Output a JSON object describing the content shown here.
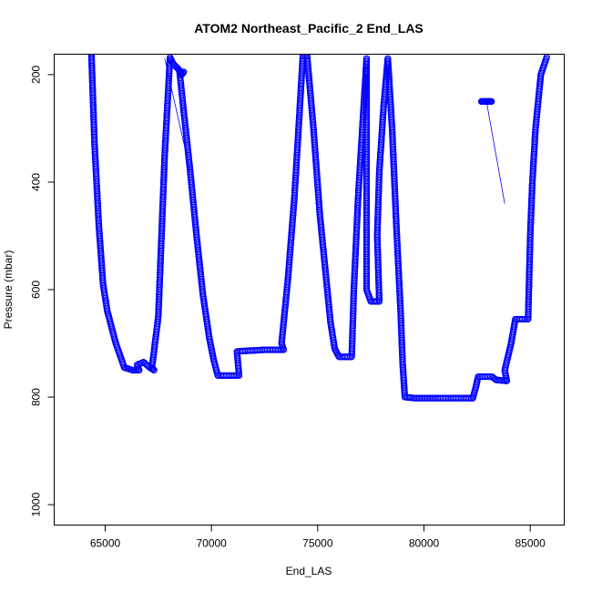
{
  "chart_data": {
    "type": "scatter",
    "title": "ATOM2 Northeast_Pacific_2 End_LAS",
    "xlabel": "End_LAS",
    "ylabel": "Pressure (mbar)",
    "xlim": [
      62600,
      86600
    ],
    "ylim": [
      1038,
      162
    ],
    "y_reversed": true,
    "x_ticks": [
      65000,
      70000,
      75000,
      80000,
      85000
    ],
    "y_ticks": [
      200,
      400,
      600,
      800,
      1000
    ],
    "x_tick_labels": [
      "65000",
      "70000",
      "75000",
      "80000",
      "85000"
    ],
    "y_tick_labels": [
      "200",
      "400",
      "600",
      "800",
      "1000"
    ],
    "grid": false,
    "marker": "open-circle",
    "series": [
      {
        "color": "#0000ff",
        "trace": [
          [
            64350,
            160
          ],
          [
            64500,
            330
          ],
          [
            64700,
            480
          ],
          [
            64900,
            590
          ],
          [
            65100,
            640
          ],
          [
            65500,
            700
          ],
          [
            65900,
            745
          ],
          [
            66300,
            750
          ],
          [
            66600,
            750
          ],
          [
            66500,
            740
          ],
          [
            66800,
            735
          ],
          [
            67100,
            745
          ],
          [
            67300,
            750
          ],
          [
            67200,
            745
          ],
          [
            67500,
            650
          ],
          [
            67800,
            350
          ],
          [
            68050,
            168
          ],
          [
            68200,
            180
          ],
          [
            68450,
            190
          ],
          [
            68600,
            200
          ],
          [
            68700,
            195
          ],
          [
            68500,
            195
          ],
          [
            68700,
            270
          ],
          [
            69000,
            380
          ],
          [
            69300,
            500
          ],
          [
            69600,
            610
          ],
          [
            69900,
            690
          ],
          [
            70100,
            730
          ],
          [
            70300,
            760
          ],
          [
            70700,
            760
          ],
          [
            71300,
            760
          ],
          [
            71200,
            715
          ],
          [
            72500,
            712
          ],
          [
            73400,
            712
          ],
          [
            73300,
            700
          ],
          [
            73600,
            580
          ],
          [
            73900,
            430
          ],
          [
            74100,
            300
          ],
          [
            74300,
            165
          ],
          [
            74500,
            165
          ],
          [
            74800,
            300
          ],
          [
            75100,
            460
          ],
          [
            75400,
            580
          ],
          [
            75600,
            660
          ],
          [
            75800,
            710
          ],
          [
            76000,
            725
          ],
          [
            76600,
            725
          ],
          [
            76700,
            600
          ],
          [
            76900,
            430
          ],
          [
            77100,
            300
          ],
          [
            77300,
            170
          ],
          [
            77300,
            600
          ],
          [
            77500,
            622
          ],
          [
            77900,
            622
          ],
          [
            77800,
            500
          ],
          [
            77900,
            380
          ],
          [
            78100,
            260
          ],
          [
            78300,
            170
          ],
          [
            78500,
            300
          ],
          [
            78700,
            480
          ],
          [
            78900,
            640
          ],
          [
            79000,
            740
          ],
          [
            79100,
            800
          ],
          [
            79600,
            802
          ],
          [
            80500,
            802
          ],
          [
            81500,
            802
          ],
          [
            82300,
            802
          ],
          [
            82450,
            780
          ],
          [
            82550,
            762
          ],
          [
            83200,
            762
          ],
          [
            83400,
            768
          ],
          [
            83900,
            770
          ],
          [
            83800,
            750
          ],
          [
            84100,
            700
          ],
          [
            84300,
            655
          ],
          [
            84700,
            655
          ],
          [
            84900,
            655
          ],
          [
            85000,
            500
          ],
          [
            85100,
            400
          ],
          [
            85250,
            300
          ],
          [
            85500,
            200
          ],
          [
            85800,
            165
          ]
        ]
      }
    ]
  }
}
